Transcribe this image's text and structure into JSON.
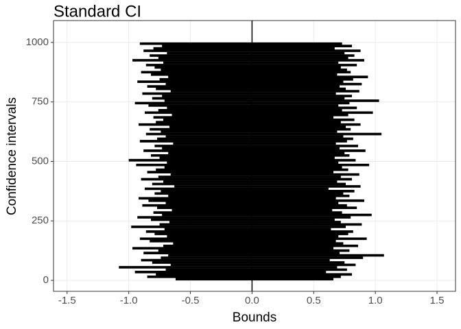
{
  "chart_data": {
    "type": "segments",
    "title": "Standard CI",
    "x_label": "Bounds",
    "y_label": "Confidence intervals",
    "color": "#000000",
    "grid": true,
    "vline": 0,
    "xlim": [
      -1.61,
      1.65
    ],
    "ylim": [
      -46,
      1092
    ],
    "xticks": [
      -1.5,
      {
        "value": -1,
        "label": "-1.0"
      },
      -0.5,
      {
        "value": 0,
        "label": "0.0"
      },
      0.5,
      {
        "value": 1,
        "label": "1.0"
      },
      1.5
    ],
    "yticks": [
      0,
      250,
      500,
      750,
      1000
    ],
    "y": [
      5,
      15,
      25,
      35,
      45,
      55,
      65,
      75,
      85,
      95,
      105,
      115,
      125,
      135,
      145,
      155,
      165,
      175,
      185,
      195,
      205,
      215,
      225,
      235,
      245,
      255,
      265,
      275,
      285,
      295,
      305,
      315,
      325,
      335,
      345,
      355,
      365,
      375,
      385,
      395,
      405,
      415,
      425,
      435,
      445,
      455,
      465,
      475,
      485,
      495,
      505,
      515,
      525,
      535,
      545,
      555,
      565,
      575,
      585,
      595,
      605,
      615,
      625,
      635,
      645,
      655,
      665,
      675,
      685,
      695,
      705,
      715,
      725,
      735,
      745,
      755,
      765,
      775,
      785,
      795,
      805,
      815,
      825,
      835,
      845,
      855,
      865,
      875,
      885,
      895,
      905,
      915,
      925,
      935,
      945,
      955,
      965,
      975,
      985,
      995
    ],
    "lower": [
      -0.62,
      -0.85,
      -0.78,
      -0.95,
      -0.7,
      -1.08,
      -0.66,
      -0.81,
      -0.9,
      -0.74,
      -0.68,
      -0.88,
      -0.76,
      -0.97,
      -0.72,
      -0.64,
      -0.83,
      -0.91,
      -0.69,
      -0.79,
      -0.86,
      -0.71,
      -0.98,
      -0.75,
      -0.67,
      -0.82,
      -0.93,
      -0.73,
      -0.8,
      -0.65,
      -0.77,
      -0.89,
      -0.7,
      -0.84,
      -0.92,
      -0.68,
      -0.79,
      -0.74,
      -0.87,
      -0.63,
      -0.81,
      -0.72,
      -0.9,
      -0.76,
      -0.66,
      -0.85,
      -0.78,
      -0.71,
      -0.94,
      -0.69,
      -1.0,
      -0.75,
      -0.82,
      -0.68,
      -0.88,
      -0.73,
      -0.79,
      -0.64,
      -0.91,
      -0.77,
      -0.7,
      -0.86,
      -0.74,
      -0.83,
      -0.67,
      -0.92,
      -0.78,
      -0.72,
      -0.8,
      -0.65,
      -0.87,
      -0.76,
      -0.69,
      -0.84,
      -0.95,
      -0.71,
      -0.81,
      -0.73,
      -0.89,
      -0.66,
      -0.78,
      -0.85,
      -0.7,
      -0.93,
      -0.75,
      -0.68,
      -0.82,
      -0.9,
      -0.74,
      -0.79,
      -0.86,
      -0.72,
      -0.97,
      -0.76,
      -0.83,
      -0.69,
      -0.88,
      -0.8,
      -0.73,
      -0.91
    ],
    "upper": [
      0.66,
      0.72,
      0.81,
      0.6,
      0.77,
      0.69,
      0.84,
      0.75,
      0.63,
      0.9,
      1.07,
      0.71,
      0.79,
      0.66,
      0.86,
      0.74,
      0.68,
      0.93,
      0.7,
      0.78,
      0.82,
      0.64,
      0.76,
      0.89,
      0.72,
      0.67,
      0.8,
      0.97,
      0.73,
      0.65,
      0.85,
      0.77,
      0.7,
      0.91,
      0.68,
      0.79,
      0.74,
      0.83,
      0.62,
      0.88,
      0.76,
      0.69,
      0.81,
      0.72,
      0.87,
      0.66,
      0.78,
      0.73,
      0.95,
      0.7,
      0.84,
      0.67,
      0.79,
      0.75,
      0.92,
      0.71,
      0.86,
      0.68,
      0.77,
      0.82,
      0.74,
      1.05,
      0.69,
      0.8,
      0.76,
      0.88,
      0.72,
      0.83,
      0.66,
      0.78,
      0.98,
      0.73,
      0.85,
      0.7,
      0.79,
      1.03,
      0.75,
      0.81,
      0.68,
      0.87,
      0.76,
      0.71,
      0.89,
      0.74,
      0.82,
      0.94,
      0.69,
      0.8,
      0.77,
      0.72,
      0.85,
      0.7,
      0.91,
      0.78,
      0.83,
      0.75,
      0.88,
      0.67,
      0.81,
      0.73
    ]
  }
}
